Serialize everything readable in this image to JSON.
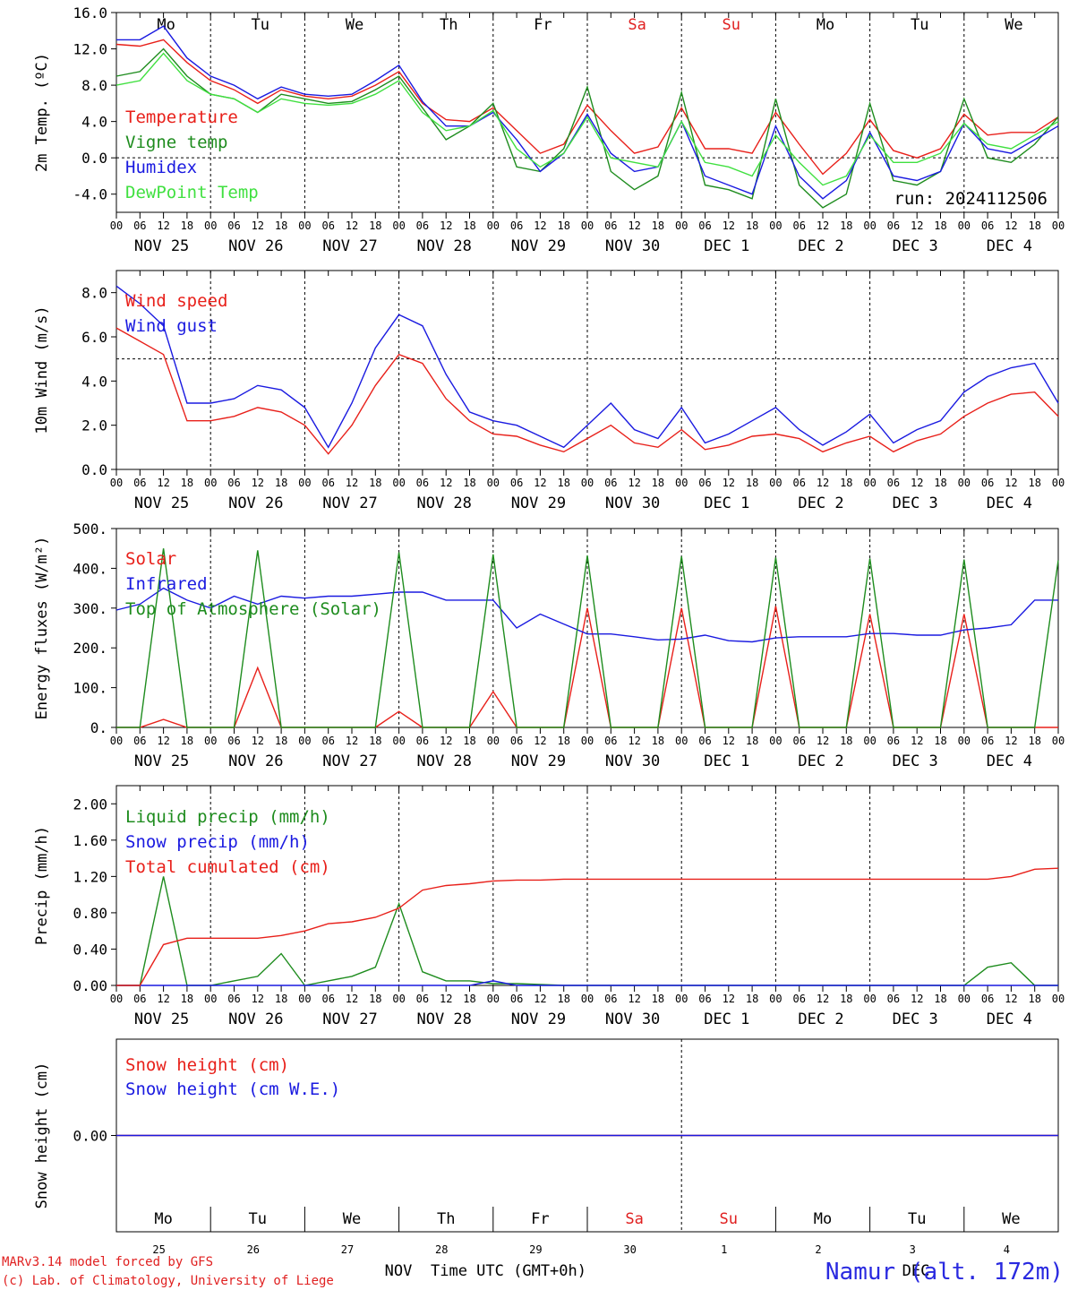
{
  "chart_data": [
    {
      "type": "line",
      "ylabel": "2m Temp. (ºC)",
      "ylim": [
        -6,
        16
      ],
      "yticks": [
        "16.0",
        "12.0",
        "8.0",
        "4.0",
        "0.0",
        "-4.0"
      ],
      "run_label": "run: 2024112506",
      "weekdays": [
        {
          "label": "Mo",
          "color": "#000000"
        },
        {
          "label": "Tu",
          "color": "#000000"
        },
        {
          "label": "We",
          "color": "#000000"
        },
        {
          "label": "Th",
          "color": "#000000"
        },
        {
          "label": "Fr",
          "color": "#000000"
        },
        {
          "label": "Sa",
          "color": "#e02020"
        },
        {
          "label": "Su",
          "color": "#e02020"
        },
        {
          "label": "Mo",
          "color": "#000000"
        },
        {
          "label": "Tu",
          "color": "#000000"
        },
        {
          "label": "We",
          "color": "#000000"
        }
      ],
      "x_hours": [
        0,
        6,
        12,
        18,
        24,
        30,
        36,
        42,
        48,
        54,
        60,
        66,
        72,
        78,
        84,
        90,
        96,
        102,
        108,
        114,
        120,
        126,
        132,
        138,
        144,
        150,
        156,
        162,
        168,
        174,
        180,
        186,
        192,
        198,
        204,
        210,
        216,
        222,
        228,
        234,
        240
      ],
      "series": [
        {
          "name": "Temperature",
          "color": "#e8201a",
          "values": [
            12.5,
            12.3,
            13.0,
            10.5,
            8.5,
            7.5,
            6.0,
            7.5,
            6.8,
            6.5,
            6.8,
            8.0,
            9.5,
            6.0,
            4.2,
            4.0,
            5.5,
            3.0,
            0.5,
            1.5,
            5.8,
            3.0,
            0.5,
            1.2,
            5.5,
            1.0,
            1.0,
            0.5,
            5.0,
            1.5,
            -1.8,
            0.5,
            4.2,
            0.8,
            0.0,
            1.0,
            4.8,
            2.5,
            2.8,
            2.8,
            4.5
          ]
        },
        {
          "name": "Vigne temp",
          "color": "#1e8c1e",
          "values": [
            9.0,
            9.5,
            12.0,
            9.0,
            7.0,
            6.5,
            5.0,
            7.0,
            6.5,
            6.0,
            6.2,
            7.5,
            9.0,
            5.5,
            2.0,
            3.5,
            6.0,
            -1.0,
            -1.5,
            1.0,
            7.8,
            -1.5,
            -3.5,
            -2.0,
            7.2,
            -3.0,
            -3.5,
            -4.5,
            6.5,
            -3.0,
            -5.5,
            -4.0,
            6.0,
            -2.5,
            -3.0,
            -1.5,
            6.5,
            0.0,
            -0.5,
            1.5,
            4.5
          ]
        },
        {
          "name": "Humidex",
          "color": "#1a1ae0",
          "values": [
            13.0,
            13.0,
            14.5,
            11.0,
            9.0,
            8.0,
            6.5,
            7.8,
            7.0,
            6.8,
            7.0,
            8.5,
            10.2,
            6.2,
            3.5,
            3.5,
            5.0,
            2.0,
            -1.5,
            0.5,
            4.8,
            0.5,
            -1.5,
            -1.0,
            4.0,
            -2.0,
            -3.0,
            -4.0,
            3.5,
            -2.0,
            -4.5,
            -2.5,
            2.8,
            -2.0,
            -2.5,
            -1.5,
            3.8,
            1.0,
            0.5,
            2.0,
            3.5
          ]
        },
        {
          "name": "DewPoint Temp",
          "color": "#40e040",
          "values": [
            8.0,
            8.5,
            11.5,
            8.5,
            7.0,
            6.5,
            5.0,
            6.5,
            6.0,
            5.8,
            6.0,
            7.0,
            8.5,
            5.0,
            3.0,
            3.5,
            5.2,
            1.0,
            -1.0,
            0.5,
            4.5,
            0.0,
            -0.5,
            -1.0,
            4.0,
            -0.5,
            -1.0,
            -2.0,
            2.5,
            -0.5,
            -3.0,
            -2.0,
            2.5,
            -0.5,
            -0.5,
            0.5,
            3.8,
            1.5,
            1.0,
            2.5,
            4.0
          ]
        }
      ]
    },
    {
      "type": "line",
      "ylabel": "10m Wind (m/s)",
      "ylim": [
        0,
        9
      ],
      "yticks": [
        "8.0",
        "6.0",
        "4.0",
        "2.0",
        "0.0"
      ],
      "ref_line": 5,
      "x_hours": [
        0,
        6,
        12,
        18,
        24,
        30,
        36,
        42,
        48,
        54,
        60,
        66,
        72,
        78,
        84,
        90,
        96,
        102,
        108,
        114,
        120,
        126,
        132,
        138,
        144,
        150,
        156,
        162,
        168,
        174,
        180,
        186,
        192,
        198,
        204,
        210,
        216,
        222,
        228,
        234,
        240
      ],
      "series": [
        {
          "name": "Wind speed",
          "color": "#e8201a",
          "values": [
            6.4,
            5.8,
            5.2,
            2.2,
            2.2,
            2.4,
            2.8,
            2.6,
            2.0,
            0.7,
            2.0,
            3.8,
            5.2,
            4.8,
            3.2,
            2.2,
            1.6,
            1.5,
            1.1,
            0.8,
            1.4,
            2.0,
            1.2,
            1.0,
            1.8,
            0.9,
            1.1,
            1.5,
            1.6,
            1.4,
            0.8,
            1.2,
            1.5,
            0.8,
            1.3,
            1.6,
            2.4,
            3.0,
            3.4,
            3.5,
            2.4
          ]
        },
        {
          "name": "Wind gust",
          "color": "#1a1ae0",
          "values": [
            8.3,
            7.5,
            6.5,
            3.0,
            3.0,
            3.2,
            3.8,
            3.6,
            2.8,
            1.0,
            3.0,
            5.5,
            7.0,
            6.5,
            4.3,
            2.6,
            2.2,
            2.0,
            1.5,
            1.0,
            2.0,
            3.0,
            1.8,
            1.4,
            2.8,
            1.2,
            1.6,
            2.2,
            2.8,
            1.8,
            1.1,
            1.7,
            2.5,
            1.2,
            1.8,
            2.2,
            3.5,
            4.2,
            4.6,
            4.8,
            3.0
          ]
        }
      ]
    },
    {
      "type": "line",
      "ylabel": "Energy fluxes (W/m²)",
      "ylim": [
        0,
        500
      ],
      "yticks": [
        "500.",
        "400.",
        "300.",
        "200.",
        "100.",
        "0."
      ],
      "x_hours": [
        0,
        6,
        12,
        18,
        24,
        30,
        36,
        42,
        48,
        54,
        60,
        66,
        72,
        78,
        84,
        90,
        96,
        102,
        108,
        114,
        120,
        126,
        132,
        138,
        144,
        150,
        156,
        162,
        168,
        174,
        180,
        186,
        192,
        198,
        204,
        210,
        216,
        222,
        228,
        234,
        240
      ],
      "series": [
        {
          "name": "Solar",
          "color": "#e8201a",
          "values": [
            0,
            0,
            20,
            0,
            0,
            0,
            150,
            0,
            0,
            0,
            0,
            0,
            40,
            0,
            0,
            0,
            90,
            0,
            0,
            0,
            300,
            0,
            0,
            0,
            300,
            0,
            0,
            0,
            305,
            0,
            0,
            0,
            285,
            0,
            0,
            0,
            285,
            0,
            0,
            0,
            0
          ]
        },
        {
          "name": "Infrared",
          "color": "#1a1ae0",
          "values": [
            295,
            310,
            350,
            320,
            300,
            330,
            310,
            330,
            325,
            330,
            330,
            335,
            340,
            340,
            320,
            320,
            320,
            250,
            285,
            260,
            235,
            235,
            228,
            220,
            222,
            232,
            218,
            215,
            225,
            228,
            228,
            228,
            236,
            236,
            232,
            232,
            245,
            250,
            258,
            320,
            320
          ]
        },
        {
          "name": "Top of Atmosphere (Solar)",
          "color": "#1e8c1e",
          "values": [
            0,
            0,
            450,
            0,
            0,
            0,
            445,
            0,
            0,
            0,
            0,
            0,
            440,
            0,
            0,
            0,
            435,
            0,
            0,
            0,
            432,
            0,
            0,
            0,
            430,
            0,
            0,
            0,
            427,
            0,
            0,
            0,
            425,
            0,
            0,
            0,
            422,
            0,
            0,
            0,
            420
          ]
        }
      ]
    },
    {
      "type": "line",
      "ylabel": "Precip (mm/h)",
      "ylim": [
        0,
        2.2
      ],
      "yticks": [
        "2.00",
        "1.60",
        "1.20",
        "0.80",
        "0.40",
        "0.00"
      ],
      "x_hours": [
        0,
        6,
        12,
        18,
        24,
        30,
        36,
        42,
        48,
        54,
        60,
        66,
        72,
        78,
        84,
        90,
        96,
        102,
        108,
        114,
        120,
        126,
        132,
        138,
        144,
        150,
        156,
        162,
        168,
        174,
        180,
        186,
        192,
        198,
        204,
        210,
        216,
        222,
        228,
        234,
        240
      ],
      "series": [
        {
          "name": "Liquid precip (mm/h)",
          "color": "#1e8c1e",
          "values": [
            0,
            0,
            1.2,
            0,
            0,
            0.05,
            0.1,
            0.35,
            0,
            0.05,
            0.1,
            0.2,
            0.9,
            0.15,
            0.05,
            0.05,
            0.02,
            0.02,
            0.01,
            0,
            0,
            0,
            0,
            0,
            0,
            0,
            0,
            0,
            0,
            0,
            0,
            0,
            0,
            0,
            0,
            0,
            0,
            0.2,
            0.25,
            0,
            0
          ]
        },
        {
          "name": "Snow precip (mm/h)",
          "color": "#1a1ae0",
          "values": [
            0,
            0,
            0,
            0,
            0,
            0,
            0,
            0,
            0,
            0,
            0,
            0,
            0,
            0,
            0,
            0,
            0.05,
            0,
            0,
            0,
            0,
            0,
            0,
            0,
            0,
            0,
            0,
            0,
            0,
            0,
            0,
            0,
            0,
            0,
            0,
            0,
            0,
            0,
            0,
            0,
            0
          ]
        },
        {
          "name": "Total cumulated (cm)",
          "color": "#e8201a",
          "values": [
            0,
            0,
            0.45,
            0.52,
            0.52,
            0.52,
            0.52,
            0.55,
            0.6,
            0.68,
            0.7,
            0.75,
            0.85,
            1.05,
            1.1,
            1.12,
            1.15,
            1.16,
            1.16,
            1.17,
            1.17,
            1.17,
            1.17,
            1.17,
            1.17,
            1.17,
            1.17,
            1.17,
            1.17,
            1.17,
            1.17,
            1.17,
            1.17,
            1.17,
            1.17,
            1.17,
            1.17,
            1.17,
            1.2,
            1.28,
            1.29
          ]
        }
      ]
    },
    {
      "type": "line",
      "ylabel": "Snow height (cm)",
      "ylim": [
        -1,
        1
      ],
      "yticks": [
        "0.00"
      ],
      "x_hours": [
        0,
        240
      ],
      "series": [
        {
          "name": "Snow height (cm)",
          "color": "#e8201a",
          "values": [
            0,
            0
          ]
        },
        {
          "name": "Snow height (cm W.E.)",
          "color": "#1a1ae0",
          "values": [
            0,
            0
          ]
        }
      ],
      "day_numbers": [
        "25",
        "26",
        "27",
        "28",
        "29",
        "30",
        "1",
        "2",
        "3",
        "4"
      ],
      "month_labels": [
        "NOV",
        "DEC"
      ]
    }
  ],
  "hour_labels": [
    "00",
    "06",
    "12",
    "18"
  ],
  "date_labels": [
    "NOV 25",
    "NOV 26",
    "NOV 27",
    "NOV 28",
    "NOV 29",
    "NOV 30",
    "DEC  1",
    "DEC  2",
    "DEC  3",
    "DEC  4"
  ],
  "footer": {
    "model": "MARv3.14 model forced by GFS",
    "credit": "(c) Lab. of Climatology, University of Liege",
    "xlabel": "Time UTC (GMT+0h)",
    "station": "Namur (alt. 172m)"
  }
}
